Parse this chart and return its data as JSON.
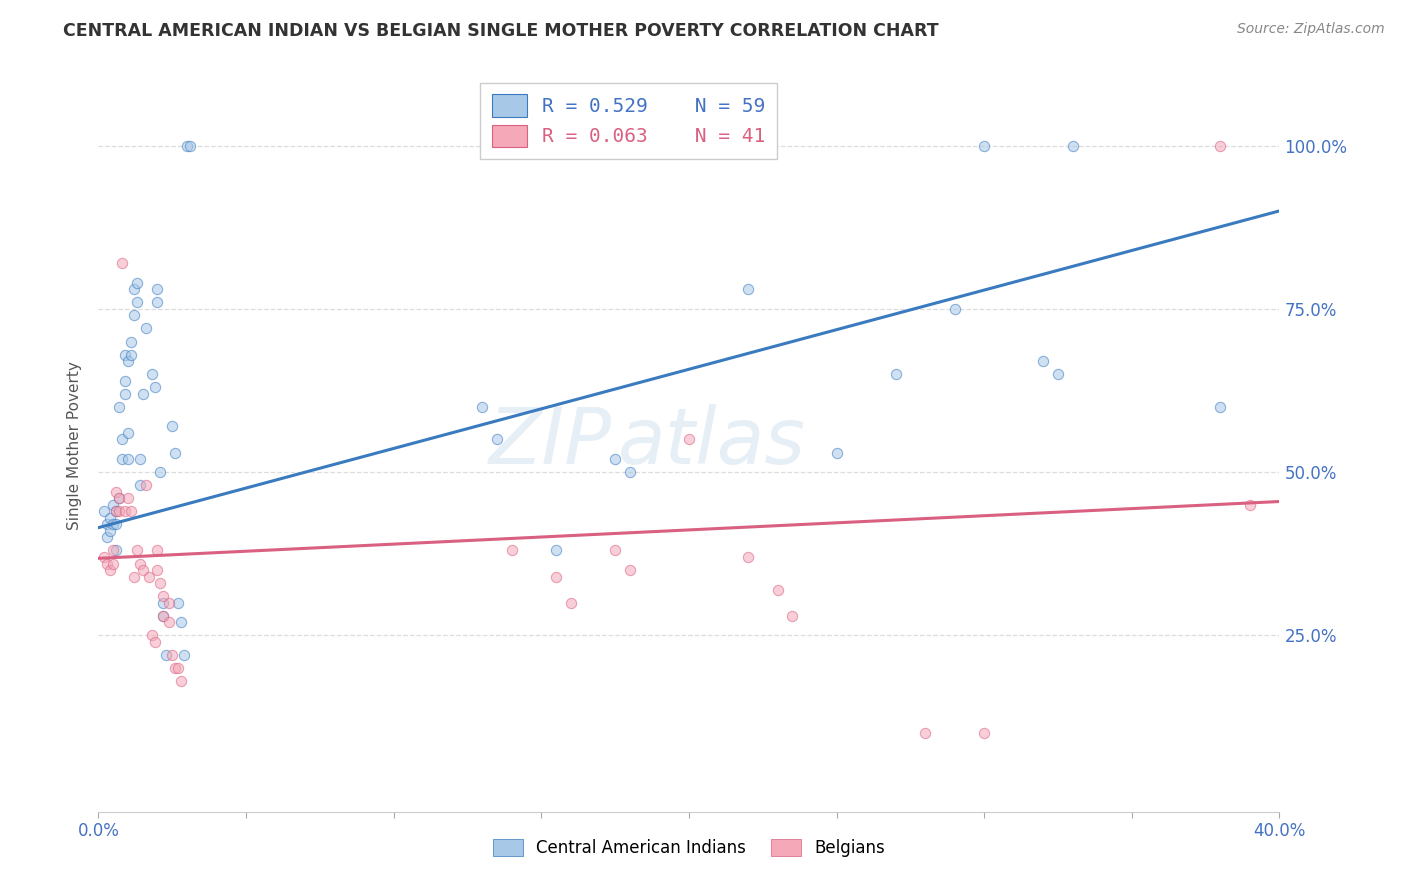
{
  "title": "CENTRAL AMERICAN INDIAN VS BELGIAN SINGLE MOTHER POVERTY CORRELATION CHART",
  "source": "Source: ZipAtlas.com",
  "ylabel": "Single Mother Poverty",
  "ytick_labels": [
    "25.0%",
    "50.0%",
    "75.0%",
    "100.0%"
  ],
  "ytick_values": [
    0.25,
    0.5,
    0.75,
    1.0
  ],
  "xlim": [
    0.0,
    0.4
  ],
  "ylim": [
    -0.02,
    1.1
  ],
  "legend_blue_r": "R = 0.529",
  "legend_blue_n": "N = 59",
  "legend_pink_r": "R = 0.063",
  "legend_pink_n": "N = 41",
  "legend_label_blue": "Central American Indians",
  "legend_label_pink": "Belgians",
  "blue_scatter": [
    [
      0.002,
      0.44
    ],
    [
      0.003,
      0.42
    ],
    [
      0.003,
      0.4
    ],
    [
      0.004,
      0.43
    ],
    [
      0.004,
      0.41
    ],
    [
      0.005,
      0.45
    ],
    [
      0.005,
      0.42
    ],
    [
      0.006,
      0.44
    ],
    [
      0.006,
      0.42
    ],
    [
      0.006,
      0.38
    ],
    [
      0.007,
      0.6
    ],
    [
      0.007,
      0.46
    ],
    [
      0.008,
      0.55
    ],
    [
      0.008,
      0.52
    ],
    [
      0.009,
      0.68
    ],
    [
      0.009,
      0.64
    ],
    [
      0.009,
      0.62
    ],
    [
      0.01,
      0.67
    ],
    [
      0.01,
      0.56
    ],
    [
      0.01,
      0.52
    ],
    [
      0.011,
      0.7
    ],
    [
      0.011,
      0.68
    ],
    [
      0.012,
      0.78
    ],
    [
      0.012,
      0.74
    ],
    [
      0.013,
      0.79
    ],
    [
      0.013,
      0.76
    ],
    [
      0.014,
      0.52
    ],
    [
      0.014,
      0.48
    ],
    [
      0.015,
      0.62
    ],
    [
      0.016,
      0.72
    ],
    [
      0.018,
      0.65
    ],
    [
      0.019,
      0.63
    ],
    [
      0.02,
      0.78
    ],
    [
      0.02,
      0.76
    ],
    [
      0.021,
      0.5
    ],
    [
      0.022,
      0.3
    ],
    [
      0.022,
      0.28
    ],
    [
      0.023,
      0.22
    ],
    [
      0.025,
      0.57
    ],
    [
      0.026,
      0.53
    ],
    [
      0.027,
      0.3
    ],
    [
      0.028,
      0.27
    ],
    [
      0.029,
      0.22
    ],
    [
      0.03,
      1.0
    ],
    [
      0.031,
      1.0
    ],
    [
      0.13,
      0.6
    ],
    [
      0.135,
      0.55
    ],
    [
      0.155,
      0.38
    ],
    [
      0.175,
      0.52
    ],
    [
      0.18,
      0.5
    ],
    [
      0.22,
      0.78
    ],
    [
      0.25,
      0.53
    ],
    [
      0.27,
      0.65
    ],
    [
      0.29,
      0.75
    ],
    [
      0.3,
      1.0
    ],
    [
      0.32,
      0.67
    ],
    [
      0.325,
      0.65
    ],
    [
      0.33,
      1.0
    ],
    [
      0.38,
      0.6
    ]
  ],
  "pink_scatter": [
    [
      0.002,
      0.37
    ],
    [
      0.003,
      0.36
    ],
    [
      0.004,
      0.35
    ],
    [
      0.005,
      0.38
    ],
    [
      0.005,
      0.36
    ],
    [
      0.006,
      0.47
    ],
    [
      0.006,
      0.44
    ],
    [
      0.007,
      0.46
    ],
    [
      0.007,
      0.44
    ],
    [
      0.008,
      0.82
    ],
    [
      0.009,
      0.44
    ],
    [
      0.01,
      0.46
    ],
    [
      0.011,
      0.44
    ],
    [
      0.012,
      0.34
    ],
    [
      0.013,
      0.38
    ],
    [
      0.014,
      0.36
    ],
    [
      0.015,
      0.35
    ],
    [
      0.016,
      0.48
    ],
    [
      0.017,
      0.34
    ],
    [
      0.018,
      0.25
    ],
    [
      0.019,
      0.24
    ],
    [
      0.02,
      0.38
    ],
    [
      0.02,
      0.35
    ],
    [
      0.021,
      0.33
    ],
    [
      0.022,
      0.31
    ],
    [
      0.022,
      0.28
    ],
    [
      0.024,
      0.3
    ],
    [
      0.024,
      0.27
    ],
    [
      0.025,
      0.22
    ],
    [
      0.026,
      0.2
    ],
    [
      0.027,
      0.2
    ],
    [
      0.028,
      0.18
    ],
    [
      0.14,
      0.38
    ],
    [
      0.155,
      0.34
    ],
    [
      0.16,
      0.3
    ],
    [
      0.175,
      0.38
    ],
    [
      0.18,
      0.35
    ],
    [
      0.2,
      0.55
    ],
    [
      0.22,
      0.37
    ],
    [
      0.23,
      0.32
    ],
    [
      0.235,
      0.28
    ],
    [
      0.28,
      0.1
    ],
    [
      0.3,
      0.1
    ],
    [
      0.38,
      1.0
    ],
    [
      0.39,
      0.45
    ]
  ],
  "blue_line_x": [
    0.0,
    0.4
  ],
  "blue_line_y": [
    0.415,
    0.9
  ],
  "pink_line_x": [
    0.0,
    0.4
  ],
  "pink_line_y": [
    0.368,
    0.455
  ],
  "watermark_zip": "ZIP",
  "watermark_atlas": "atlas",
  "scatter_size": 55,
  "scatter_alpha": 0.55,
  "blue_color": "#a8c8e8",
  "pink_color": "#f4a8b8",
  "line_blue": "#3a7bbf",
  "line_pink": "#d96080",
  "background_color": "#ffffff",
  "grid_color": "#dddddd",
  "tick_color": "#4472c4",
  "title_color": "#333333",
  "source_color": "#888888",
  "ylabel_color": "#555555"
}
